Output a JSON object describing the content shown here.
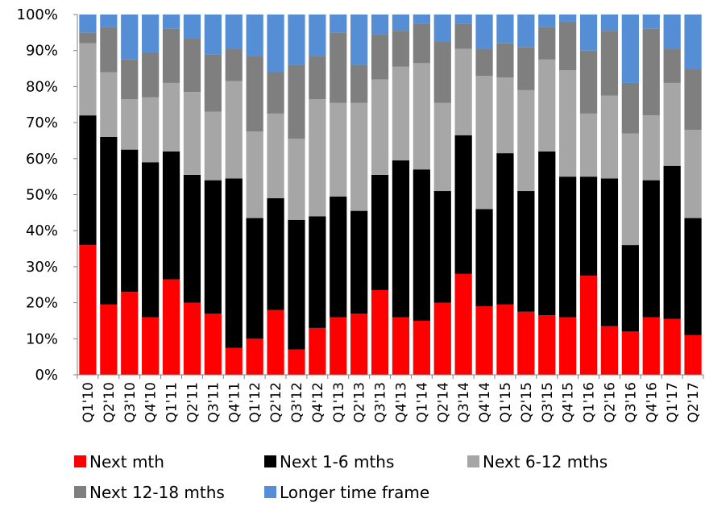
{
  "chart_data": {
    "type": "bar",
    "stacked": true,
    "percent_stacked": true,
    "categories": [
      "Q1'10",
      "Q2'10",
      "Q3'10",
      "Q4'10",
      "Q1'11",
      "Q2'11",
      "Q3'11",
      "Q4'11",
      "Q1'12",
      "Q2'12",
      "Q3'12",
      "Q4'12",
      "Q1'13",
      "Q2'13",
      "Q3'13",
      "Q4'13",
      "Q1'14",
      "Q2'14",
      "Q3'14",
      "Q4'14",
      "Q1'15",
      "Q2'15",
      "Q3'15",
      "Q4'15",
      "Q1'16",
      "Q2'16",
      "Q3'16",
      "Q4'16",
      "Q1'17",
      "Q2'17"
    ],
    "series": [
      {
        "name": "Next mth",
        "color": "#ff0000",
        "values": [
          36,
          19.5,
          23,
          16,
          26.5,
          20,
          17,
          7.5,
          10,
          18,
          7,
          13,
          16,
          17,
          23.5,
          16,
          15,
          20,
          28,
          19,
          19.5,
          17.5,
          16.5,
          16,
          27.5,
          13.5,
          12,
          16,
          15.5,
          11
        ]
      },
      {
        "name": "Next 1-6 mths",
        "color": "#000000",
        "values": [
          36,
          46.5,
          39.5,
          43,
          35.5,
          35.5,
          37,
          47,
          33.5,
          31,
          36,
          31,
          33.5,
          28.5,
          32,
          43.5,
          42,
          31,
          38.5,
          27,
          42,
          33.5,
          45.5,
          39,
          27.5,
          41,
          24,
          38,
          42.5,
          32.5
        ]
      },
      {
        "name": "Next 6-12 mths",
        "color": "#a6a6a6",
        "values": [
          20,
          18,
          14,
          18,
          19,
          23,
          19,
          27,
          24,
          23.5,
          22.5,
          32.5,
          26,
          30,
          26.5,
          26,
          29.5,
          24.5,
          24,
          37,
          21,
          28,
          25.5,
          29.5,
          17.5,
          23,
          31,
          18,
          23,
          24.5
        ]
      },
      {
        "name": "Next 12-18 mths",
        "color": "#7f7f7f",
        "values": [
          3,
          12.5,
          11,
          12.5,
          15,
          15,
          16,
          9,
          21,
          11.5,
          20.5,
          12,
          19.5,
          10.5,
          12.5,
          10,
          11,
          17,
          7,
          7.5,
          9.5,
          12,
          9,
          13.5,
          17.5,
          18,
          14,
          24,
          9.5,
          17
        ]
      },
      {
        "name": "Longer time frame",
        "color": "#558ed5",
        "values": [
          5,
          3.5,
          12.5,
          10.5,
          4,
          6.5,
          11,
          9.5,
          11.5,
          16,
          14,
          11.5,
          5,
          14,
          5.5,
          4.5,
          2.5,
          7.5,
          2.5,
          9.5,
          8,
          9,
          3.5,
          2,
          10,
          4.5,
          19,
          4,
          9.5,
          15
        ]
      }
    ],
    "title": "",
    "xlabel": "",
    "ylabel": "",
    "ylim": [
      0,
      100
    ],
    "yticks": [
      "0%",
      "10%",
      "20%",
      "30%",
      "40%",
      "50%",
      "60%",
      "70%",
      "80%",
      "90%",
      "100%"
    ],
    "grid": false,
    "legend_position": "bottom"
  }
}
